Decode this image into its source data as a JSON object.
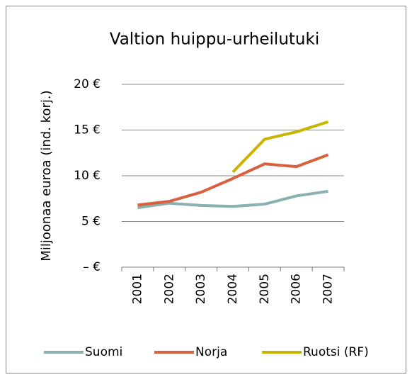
{
  "chart_data": {
    "type": "line",
    "title": "Valtion huippu-urheilutuki",
    "y_label": "Miljoonaa euroa (ind. korj.)",
    "categories": [
      "2001",
      "2002",
      "2003",
      "2004",
      "2005",
      "2006",
      "2007"
    ],
    "series": [
      {
        "name": "Suomi",
        "color": "#89b2ae",
        "values": [
          6.5,
          7.0,
          6.75,
          6.65,
          6.9,
          7.8,
          8.3
        ]
      },
      {
        "name": "Norja",
        "color": "#d8603c",
        "values": [
          6.8,
          7.2,
          8.2,
          9.7,
          11.3,
          11.0,
          12.3
        ]
      },
      {
        "name": "Ruotsi (RF)",
        "color": "#c9b400",
        "values": [
          null,
          null,
          null,
          10.4,
          14.0,
          14.8,
          15.9
        ]
      }
    ],
    "ylim": [
      0,
      20
    ],
    "yticks": [
      {
        "value": 0,
        "label": "–  €"
      },
      {
        "value": 5,
        "label": "5 €"
      },
      {
        "value": 10,
        "label": "10 €"
      },
      {
        "value": 15,
        "label": "15 €"
      },
      {
        "value": 20,
        "label": "20 €"
      }
    ],
    "grid": true,
    "legend": "bottom"
  }
}
